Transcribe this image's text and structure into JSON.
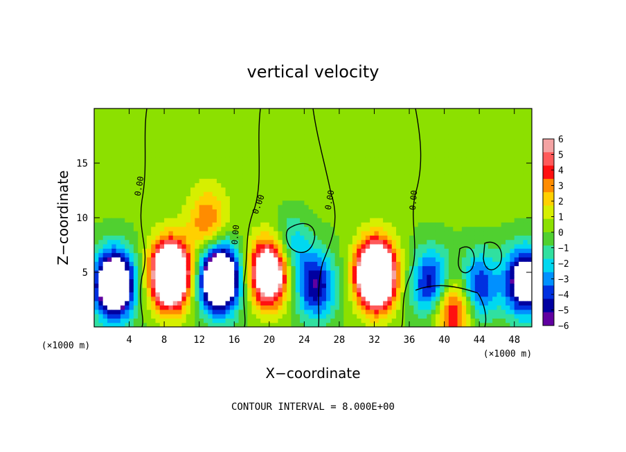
{
  "chart_data": {
    "type": "heatmap",
    "title": "vertical velocity",
    "xlabel": "X−coordinate",
    "ylabel": "Z−coordinate",
    "x_unit_left": "(×1000 m)",
    "x_unit_right": "(×1000 m)",
    "xlim": [
      0,
      50
    ],
    "ylim": [
      0,
      20
    ],
    "x_ticks": [
      4,
      8,
      12,
      16,
      20,
      24,
      28,
      32,
      36,
      40,
      44,
      48
    ],
    "y_ticks": [
      5,
      10,
      15
    ],
    "colorbar": {
      "range": [
        -6,
        6
      ],
      "ticks": [
        "6",
        "5",
        "4",
        "3",
        "2",
        "1",
        "0",
        "−1",
        "−2",
        "−3",
        "−4",
        "−5",
        "−6"
      ],
      "colors": [
        "#f4a3a3",
        "#ff5a5a",
        "#ff1010",
        "#ff8c00",
        "#ffd000",
        "#d6ef00",
        "#8ce000",
        "#50d030",
        "#30e0a0",
        "#00d8f0",
        "#0090ff",
        "#0030e0",
        "#0000a0",
        "#6000a0"
      ]
    },
    "contour_label": "0.00",
    "contour_interval_text": "CONTOUR INTERVAL = 8.000E+00",
    "cells": [
      {
        "x": 2.3,
        "z": 3.9,
        "sign": -1,
        "amp": 12
      },
      {
        "x": 8.7,
        "z": 4.8,
        "sign": 1,
        "amp": 14
      },
      {
        "x": 14.3,
        "z": 4.5,
        "sign": -1,
        "amp": 13
      },
      {
        "x": 20.0,
        "z": 5.0,
        "sign": 1,
        "amp": 11
      },
      {
        "x": 25.3,
        "z": 3.8,
        "sign": -1,
        "amp": 6
      },
      {
        "x": 32.2,
        "z": 4.8,
        "sign": 1,
        "amp": 15
      },
      {
        "x": 38.5,
        "z": 4.0,
        "sign": -1,
        "amp": 6
      },
      {
        "x": 40.9,
        "z": 1.6,
        "sign": 1,
        "amp": 6
      },
      {
        "x": 44.0,
        "z": 3.8,
        "sign": -1,
        "amp": 5
      },
      {
        "x": 49.2,
        "z": 4.2,
        "sign": -1,
        "amp": 9
      },
      {
        "x": 13.0,
        "z": 9.5,
        "sign": 1,
        "amp": 4
      },
      {
        "x": 22.5,
        "z": 7.3,
        "sign": -1,
        "amp": 3
      }
    ]
  }
}
